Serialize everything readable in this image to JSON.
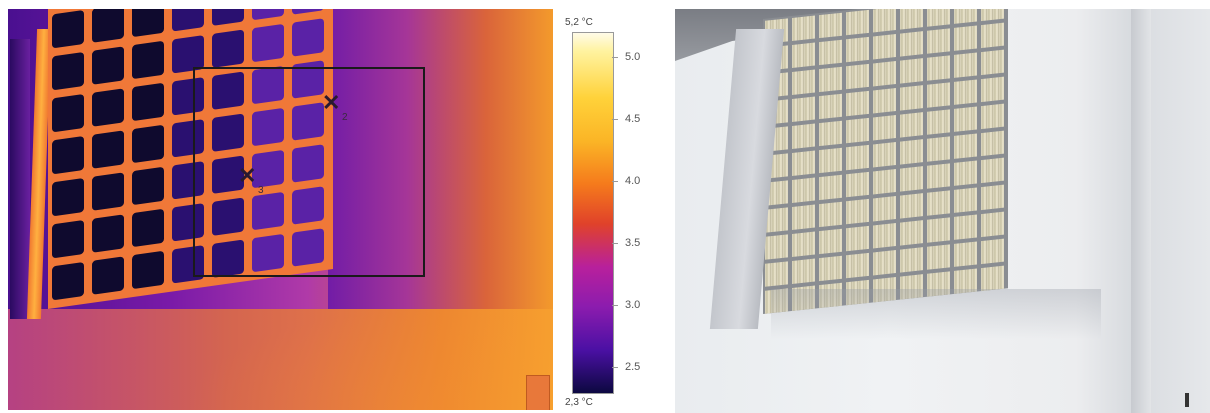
{
  "thermal_image": {
    "roi_box": "rectangle",
    "markers": [
      {
        "symbol": "✕",
        "label": "2"
      },
      {
        "symbol": "✕",
        "label": "3"
      }
    ]
  },
  "color_scale": {
    "max_label": "5,2 °C",
    "min_label": "2,3 °C",
    "tick_labels": [
      "5.0",
      "4.5",
      "4.0",
      "3.5",
      "3.0",
      "2.5"
    ],
    "palette": "iron",
    "colors": [
      "#fffbe8",
      "#ffd23a",
      "#f57a1c",
      "#b8209c",
      "#4b10a4",
      "#0c0840"
    ]
  },
  "photo": {
    "subject": "glass-block window on plastered wall"
  }
}
